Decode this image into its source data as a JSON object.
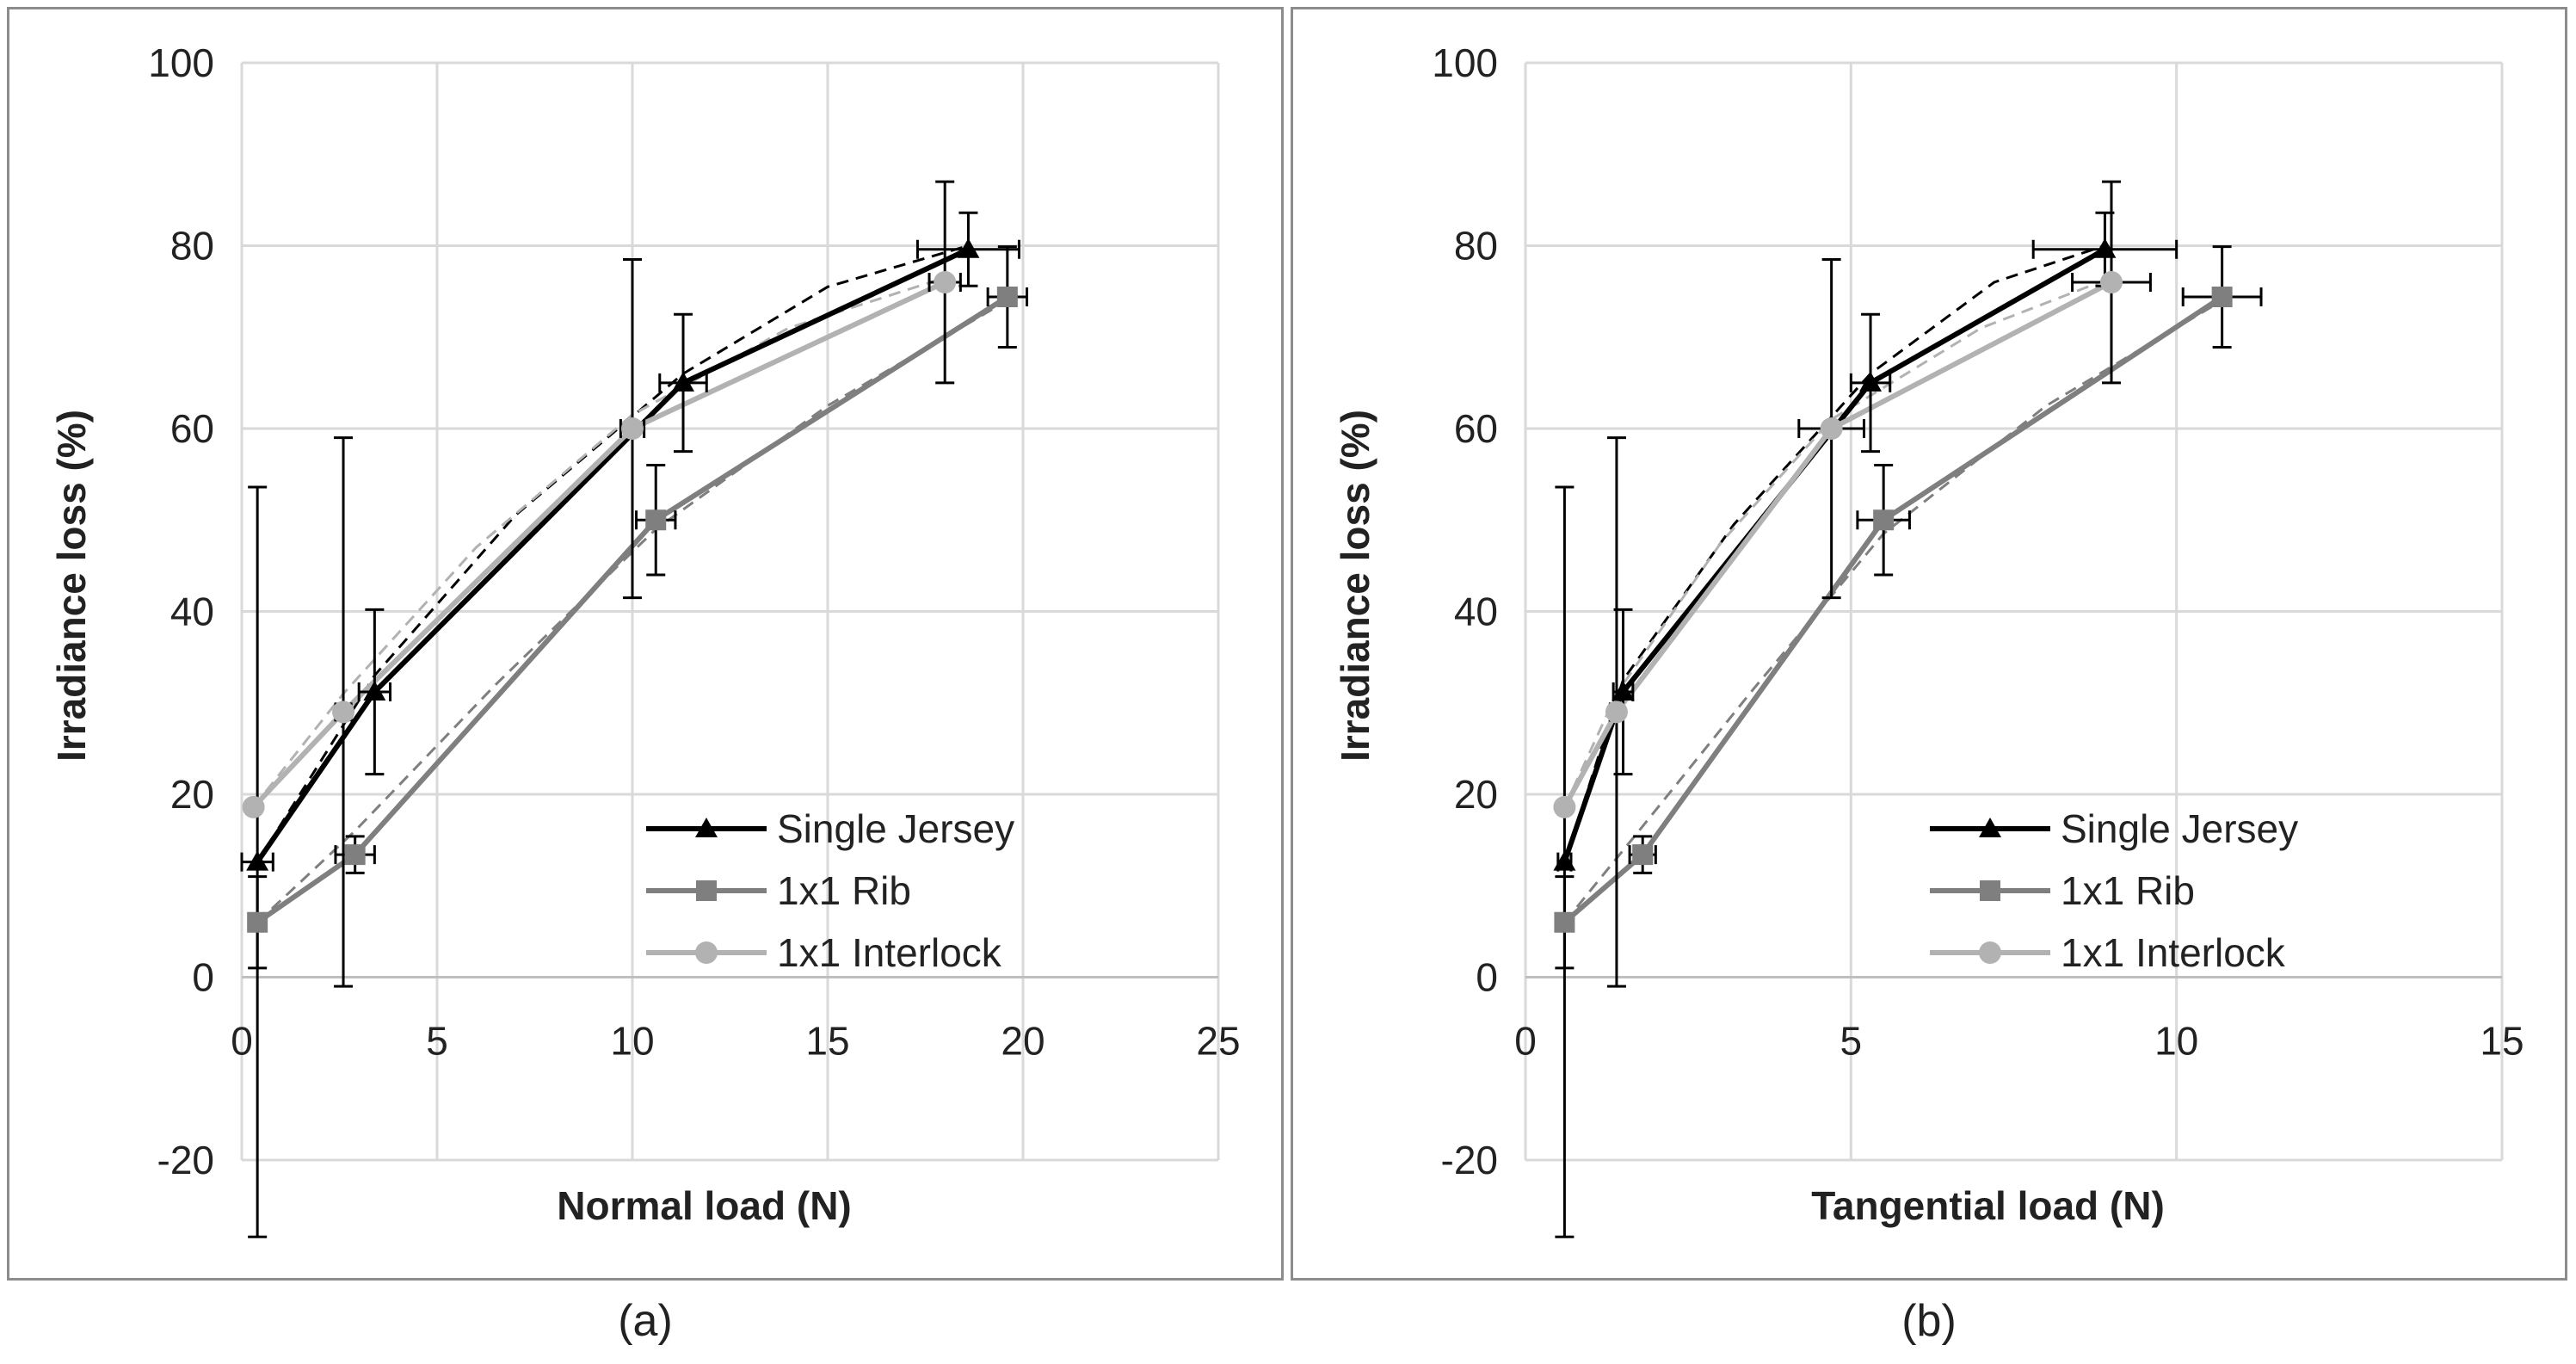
{
  "colors": {
    "sj": "#000000",
    "rib": "#7f7f7f",
    "il": "#b2b2b2",
    "grid": "#d9d9d9",
    "axis": "#d9d9d9",
    "err": "#000000"
  },
  "chart_data": [
    {
      "type": "line",
      "caption": "(a)",
      "xlabel": "Normal load (N)",
      "ylabel": "Irradiance loss (%)",
      "xlim": [
        0,
        25
      ],
      "ylim": [
        -20,
        100
      ],
      "xticks": [
        0,
        5,
        10,
        15,
        20,
        25
      ],
      "yticks": [
        -20,
        0,
        20,
        40,
        60,
        80,
        100
      ],
      "legend_position": "bottom-right",
      "series": [
        {
          "name": "Single Jersey",
          "marker": "triangle",
          "color": "#000000",
          "x": [
            0.4,
            3.4,
            11.3,
            18.6
          ],
          "y": [
            12.6,
            31.2,
            65.0,
            79.6
          ],
          "yerr": [
            41.0,
            9.0,
            7.5,
            4.0
          ],
          "xerr": [
            0.4,
            0.4,
            0.6,
            1.3
          ]
        },
        {
          "name": "1x1 Rib",
          "marker": "square",
          "color": "#7f7f7f",
          "x": [
            0.4,
            2.9,
            10.6,
            19.6
          ],
          "y": [
            6.0,
            13.4,
            50.0,
            74.4
          ],
          "yerr": [
            5.0,
            2.0,
            6.0,
            5.5
          ],
          "xerr": [
            0.2,
            0.5,
            0.5,
            0.5
          ]
        },
        {
          "name": "1x1 Interlock",
          "marker": "circle",
          "color": "#b2b2b2",
          "x": [
            0.3,
            2.6,
            10.0,
            18.0
          ],
          "y": [
            18.6,
            29.0,
            60.0,
            76.0
          ],
          "yerr": [
            0,
            30.0,
            18.5,
            11.0
          ],
          "xerr": [
            0,
            0.2,
            0.3,
            0.4
          ]
        }
      ],
      "fits": [
        {
          "series": "Single Jersey",
          "color": "#000000",
          "x": [
            0.4,
            3.4,
            7.0,
            11.3,
            15.0,
            18.6
          ],
          "y": [
            12.6,
            33.0,
            50.5,
            66.0,
            75.5,
            80.0
          ]
        },
        {
          "series": "1x1 Interlock",
          "color": "#b2b2b2",
          "x": [
            0.3,
            2.6,
            6.0,
            10.0,
            14.0,
            18.0
          ],
          "y": [
            18.6,
            31.0,
            47.0,
            61.5,
            71.0,
            76.5
          ]
        },
        {
          "series": "1x1 Rib",
          "color": "#7f7f7f",
          "x": [
            0.4,
            2.9,
            6.5,
            10.6,
            15.0,
            19.6
          ],
          "y": [
            6.0,
            16.0,
            32.0,
            49.0,
            62.5,
            74.0
          ]
        }
      ]
    },
    {
      "type": "line",
      "caption": "(b)",
      "xlabel": "Tangential load (N)",
      "ylabel": "Irradiance loss (%)",
      "xlim": [
        0,
        15
      ],
      "ylim": [
        -20,
        100
      ],
      "xticks": [
        0,
        5,
        10,
        15
      ],
      "yticks": [
        -20,
        0,
        20,
        40,
        60,
        80,
        100
      ],
      "legend_position": "bottom-right",
      "series": [
        {
          "name": "Single Jersey",
          "marker": "triangle",
          "color": "#000000",
          "x": [
            0.6,
            1.5,
            5.3,
            8.9
          ],
          "y": [
            12.6,
            31.2,
            65.0,
            79.6
          ],
          "yerr": [
            41.0,
            9.0,
            7.5,
            4.0
          ],
          "xerr": [
            0.1,
            0.15,
            0.3,
            1.1
          ]
        },
        {
          "name": "1x1 Rib",
          "marker": "square",
          "color": "#7f7f7f",
          "x": [
            0.6,
            1.8,
            5.5,
            10.7
          ],
          "y": [
            6.0,
            13.4,
            50.0,
            74.4
          ],
          "yerr": [
            5.0,
            2.0,
            6.0,
            5.5
          ],
          "xerr": [
            0.05,
            0.2,
            0.4,
            0.6
          ]
        },
        {
          "name": "1x1 Interlock",
          "marker": "circle",
          "color": "#b2b2b2",
          "x": [
            0.6,
            1.4,
            4.7,
            9.0
          ],
          "y": [
            18.6,
            29.0,
            60.0,
            76.0
          ],
          "yerr": [
            0,
            30.0,
            18.5,
            11.0
          ],
          "xerr": [
            0,
            0.1,
            0.5,
            0.6
          ]
        }
      ],
      "fits": [
        {
          "series": "Single Jersey",
          "color": "#000000",
          "x": [
            0.6,
            1.5,
            3.2,
            5.3,
            7.2,
            8.9
          ],
          "y": [
            12.6,
            32.5,
            49.5,
            66.0,
            76.0,
            80.0
          ]
        },
        {
          "series": "1x1 Interlock",
          "color": "#b2b2b2",
          "x": [
            0.6,
            1.4,
            3.0,
            4.7,
            7.0,
            9.0
          ],
          "y": [
            18.6,
            31.0,
            47.5,
            61.0,
            71.0,
            76.5
          ]
        },
        {
          "series": "1x1 Rib",
          "color": "#7f7f7f",
          "x": [
            0.6,
            1.8,
            3.5,
            5.5,
            8.0,
            10.7
          ],
          "y": [
            6.0,
            16.5,
            31.5,
            48.5,
            62.5,
            74.0
          ]
        }
      ]
    }
  ]
}
